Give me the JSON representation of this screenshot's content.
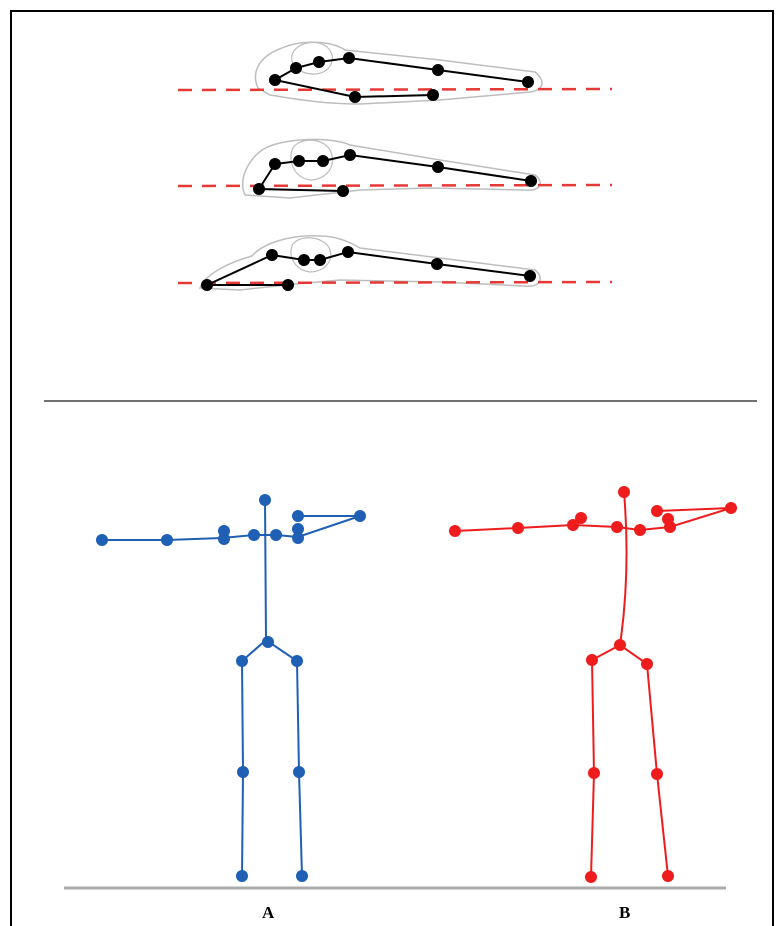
{
  "colors": {
    "frame": "#000000",
    "hand_joint": "#000000",
    "hand_outline": "#bdbdbd",
    "reference_line": "#e53935",
    "divider": "#707070",
    "skeleton_a": "#1f5fb4",
    "skeleton_b": "#ee1c1c",
    "ground": "#aaaaaa"
  },
  "labels": {
    "a": "A",
    "b": "B"
  },
  "hand_poses_count": 3,
  "skeletons": [
    "A",
    "B"
  ]
}
